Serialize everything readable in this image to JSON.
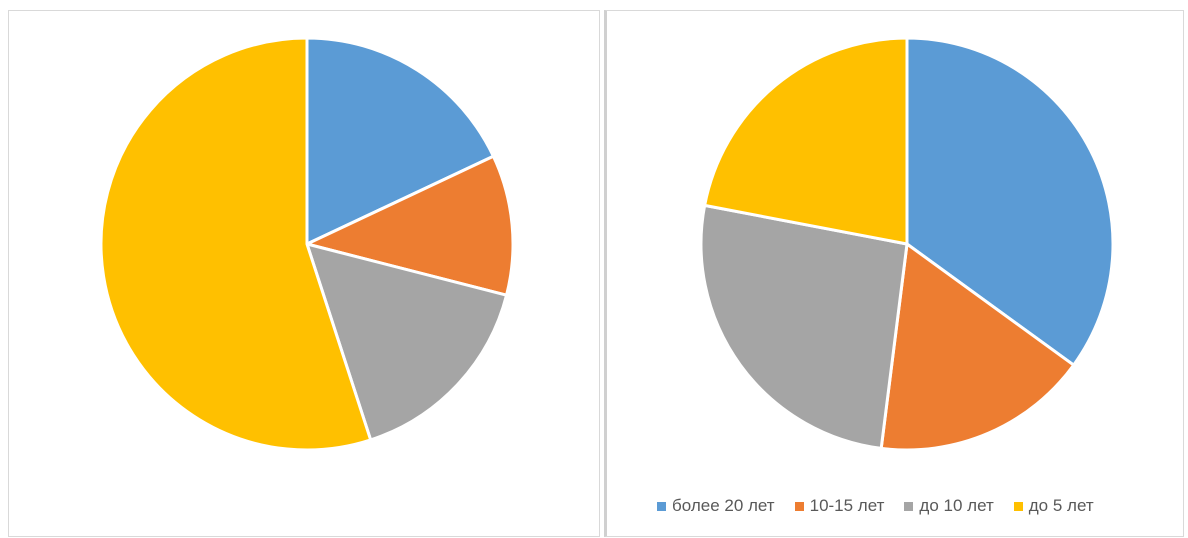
{
  "chart_data": [
    {
      "type": "pie",
      "title": "",
      "categories": [
        "более 20 лет",
        "10-15 лет",
        "до 10 лет",
        "до 5 лет"
      ],
      "values": [
        18,
        11,
        16,
        55
      ],
      "colors": [
        "#5b9bd5",
        "#ed7d31",
        "#a5a5a5",
        "#ffc000"
      ],
      "start_angle_deg": 0,
      "direction": "clockwise",
      "legend": "none"
    },
    {
      "type": "pie",
      "title": "",
      "categories": [
        "более 20 лет",
        "10-15 лет",
        "до 10 лет",
        "до 5 лет"
      ],
      "values": [
        35,
        17,
        26,
        22
      ],
      "colors": [
        "#5b9bd5",
        "#ed7d31",
        "#a5a5a5",
        "#ffc000"
      ],
      "start_angle_deg": 0,
      "direction": "clockwise",
      "legend": "bottom"
    }
  ],
  "legend": {
    "items": [
      {
        "label": "более 20 лет",
        "color": "#5b9bd5"
      },
      {
        "label": "10-15 лет",
        "color": "#ed7d31"
      },
      {
        "label": "до 10 лет",
        "color": "#a5a5a5"
      },
      {
        "label": "до 5 лет",
        "color": "#ffc000"
      }
    ]
  }
}
